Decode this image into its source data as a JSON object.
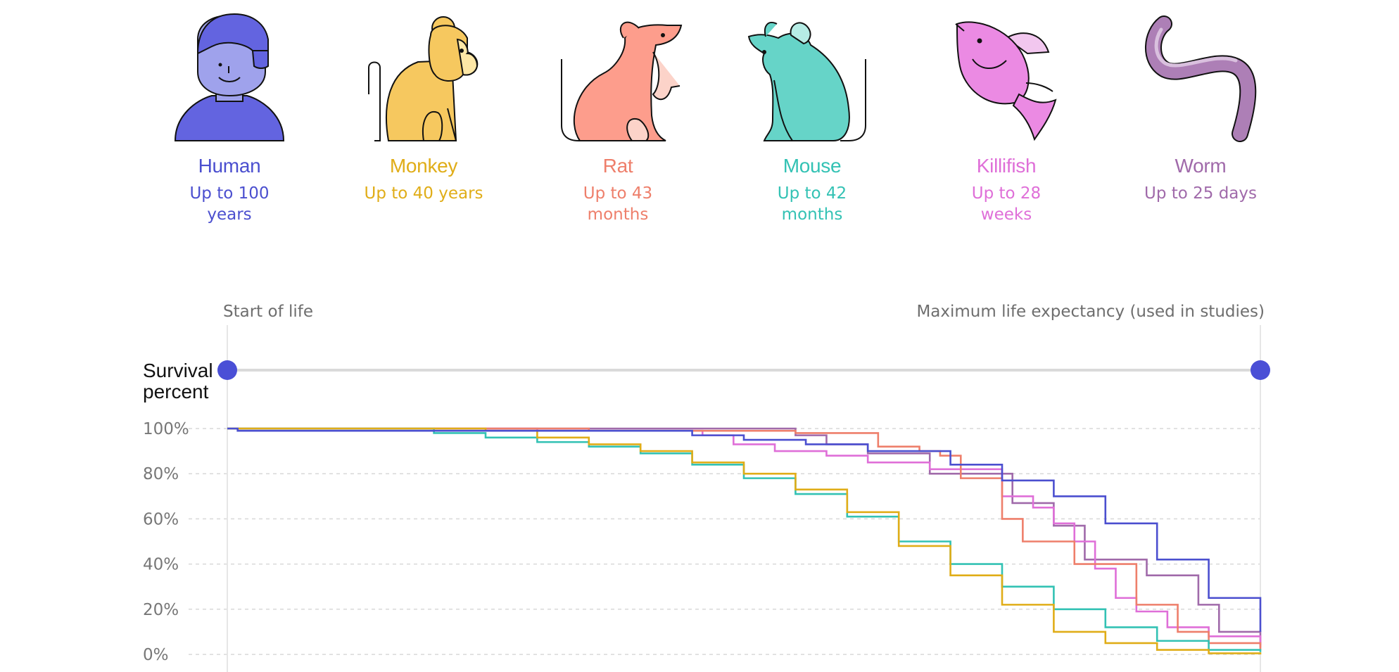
{
  "species": [
    {
      "name": "Human",
      "lifespan": "Up to 100 years",
      "color": "#4b4fcf",
      "icon": "human-icon"
    },
    {
      "name": "Monkey",
      "lifespan": "Up to 40 years",
      "color": "#e0ad18",
      "icon": "monkey-icon"
    },
    {
      "name": "Rat",
      "lifespan": "Up to 43 months",
      "color": "#ee7f6b",
      "icon": "rat-icon"
    },
    {
      "name": "Mouse",
      "lifespan": "Up to 42 months",
      "color": "#33c2b4",
      "icon": "mouse-icon"
    },
    {
      "name": "Killifish",
      "lifespan": "Up to 28 weeks",
      "color": "#df6fd8",
      "icon": "killifish-icon"
    },
    {
      "name": "Worm",
      "lifespan": "Up to 25 days",
      "color": "#a06aaa",
      "icon": "worm-icon"
    }
  ],
  "timeline": {
    "start_label": "Start of life",
    "end_label": "Maximum life expectancy (used in studies)",
    "marker_color": "#4a4fd6"
  },
  "chart_data": {
    "type": "line",
    "step": true,
    "ylabel": "Survival percent",
    "xlabel": "",
    "xlim": [
      0,
      100
    ],
    "ylim": [
      0,
      100
    ],
    "y_ticks": [
      "0%",
      "20%",
      "40%",
      "60%",
      "80%",
      "100%"
    ],
    "grid": true,
    "series": [
      {
        "name": "Worm",
        "color": "#a06aaa",
        "x": [
          0,
          55,
          58,
          62,
          68,
          76,
          80,
          83,
          89,
          94,
          96,
          100
        ],
        "y": [
          100,
          97,
          93,
          89,
          80,
          67,
          57,
          42,
          35,
          22,
          10,
          4
        ]
      },
      {
        "name": "Killifish",
        "color": "#df6fd8",
        "x": [
          0,
          30,
          46,
          49,
          53,
          58,
          62,
          68,
          75,
          78,
          80,
          82,
          84,
          86,
          88,
          91,
          95,
          100
        ],
        "y": [
          100,
          99,
          97,
          93,
          90,
          88,
          85,
          82,
          70,
          65,
          58,
          50,
          38,
          25,
          19,
          12,
          8,
          3
        ]
      },
      {
        "name": "Rat",
        "color": "#ee7f6b",
        "x": [
          0,
          35,
          55,
          63,
          67,
          69,
          71,
          75,
          77,
          82,
          85,
          88,
          92,
          95,
          100
        ],
        "y": [
          100,
          99,
          98,
          92,
          90,
          88,
          78,
          60,
          50,
          40,
          40,
          22,
          10,
          5,
          2
        ]
      },
      {
        "name": "Mouse",
        "color": "#33c2b4",
        "x": [
          0,
          20,
          25,
          30,
          35,
          40,
          45,
          50,
          55,
          60,
          65,
          70,
          75,
          80,
          85,
          90,
          95,
          100
        ],
        "y": [
          100,
          98,
          96,
          94,
          92,
          89,
          84,
          78,
          71,
          61,
          50,
          40,
          30,
          20,
          12,
          6,
          2,
          1
        ]
      },
      {
        "name": "Monkey",
        "color": "#e0ad18",
        "x": [
          0,
          25,
          30,
          35,
          40,
          45,
          50,
          55,
          60,
          65,
          70,
          75,
          80,
          85,
          90,
          95,
          100
        ],
        "y": [
          100,
          99,
          96,
          93,
          90,
          85,
          80,
          73,
          63,
          48,
          35,
          22,
          10,
          5,
          2,
          0.5,
          0
        ]
      },
      {
        "name": "Human",
        "color": "#4b4fcf",
        "x": [
          0,
          1,
          30,
          45,
          50,
          56,
          62,
          70,
          75,
          80,
          85,
          90,
          95,
          100
        ],
        "y": [
          100,
          99,
          99,
          97,
          95,
          93,
          90,
          84,
          77,
          70,
          58,
          42,
          25,
          10
        ]
      }
    ]
  }
}
